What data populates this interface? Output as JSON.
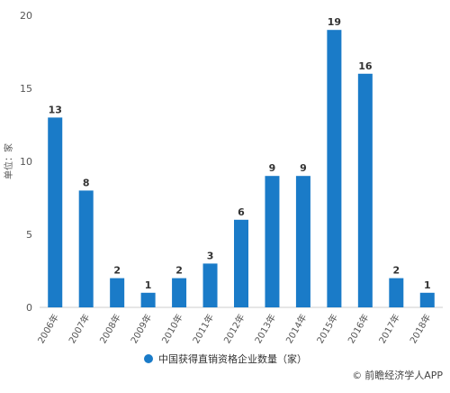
{
  "chart_data": {
    "type": "bar",
    "categories": [
      "2006年",
      "2007年",
      "2008年",
      "2009年",
      "2010年",
      "2011年",
      "2012年",
      "2013年",
      "2014年",
      "2015年",
      "2016年",
      "2017年",
      "2018年"
    ],
    "series": [
      {
        "name": "中国获得直销资格企业数量（家）",
        "values": [
          13,
          8,
          2,
          1,
          2,
          3,
          6,
          9,
          9,
          19,
          16,
          2,
          1
        ]
      }
    ],
    "ylabel": "单位：家",
    "ylim": [
      0,
      20
    ],
    "yticks": [
      0,
      5,
      10,
      15,
      20
    ],
    "grid": false,
    "legend_position": "bottom",
    "bar_color": "#1a7bc8"
  },
  "source_text": "前瞻经济学人APP",
  "source_icon": "copyright-icon",
  "colors": {
    "axis": "#cccccc",
    "tick_text": "#555555",
    "value_text": "#333333"
  }
}
